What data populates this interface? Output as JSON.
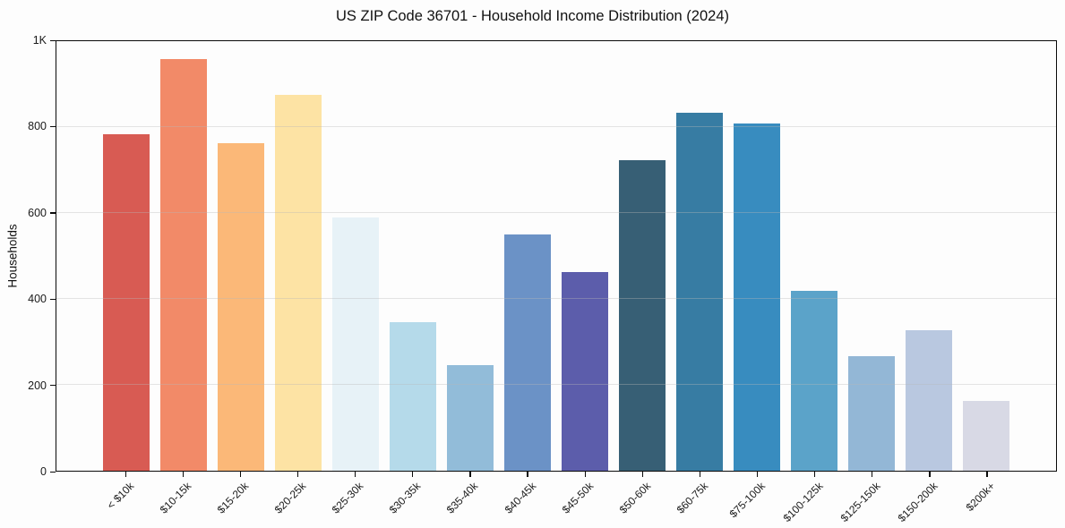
{
  "figure": {
    "background": "#fdfdfd",
    "spine_color": "#0a0a0a",
    "grid_color": "#e8e8e8",
    "text_color": "#1a1a1a"
  },
  "chart_data": {
    "type": "bar",
    "title": "US ZIP Code 36701 - Household Income Distribution (2024)",
    "xlabel": "",
    "ylabel": "Households",
    "categories": [
      "< $10k",
      "$10-15k",
      "$15-20k",
      "$20-25k",
      "$25-30k",
      "$30-35k",
      "$35-40k",
      "$40-45k",
      "$45-50k",
      "$50-60k",
      "$60-75k",
      "$75-100k",
      "$100-125k",
      "$125-150k",
      "$150-200k",
      "$200k+"
    ],
    "values": [
      783,
      958,
      762,
      875,
      590,
      345,
      245,
      549,
      462,
      722,
      833,
      808,
      418,
      266,
      327,
      163
    ],
    "bar_colors": [
      "#d85b53",
      "#f28a68",
      "#fbb878",
      "#fde3a4",
      "#e7f2f7",
      "#b5daea",
      "#92bcd9",
      "#6b92c6",
      "#5c5dab",
      "#375f75",
      "#377ca3",
      "#388cbf",
      "#5ba3c9",
      "#93b7d6",
      "#b9c8e0",
      "#d8d9e5"
    ],
    "ylim": [
      0,
      1000
    ],
    "yticks": [
      {
        "value": 0,
        "label": "0"
      },
      {
        "value": 200,
        "label": "200"
      },
      {
        "value": 400,
        "label": "400"
      },
      {
        "value": 600,
        "label": "600"
      },
      {
        "value": 800,
        "label": "800"
      },
      {
        "value": 1000,
        "label": "1K"
      }
    ],
    "grid": "horizontal",
    "legend": "none",
    "x_tick_rotation": 45
  }
}
